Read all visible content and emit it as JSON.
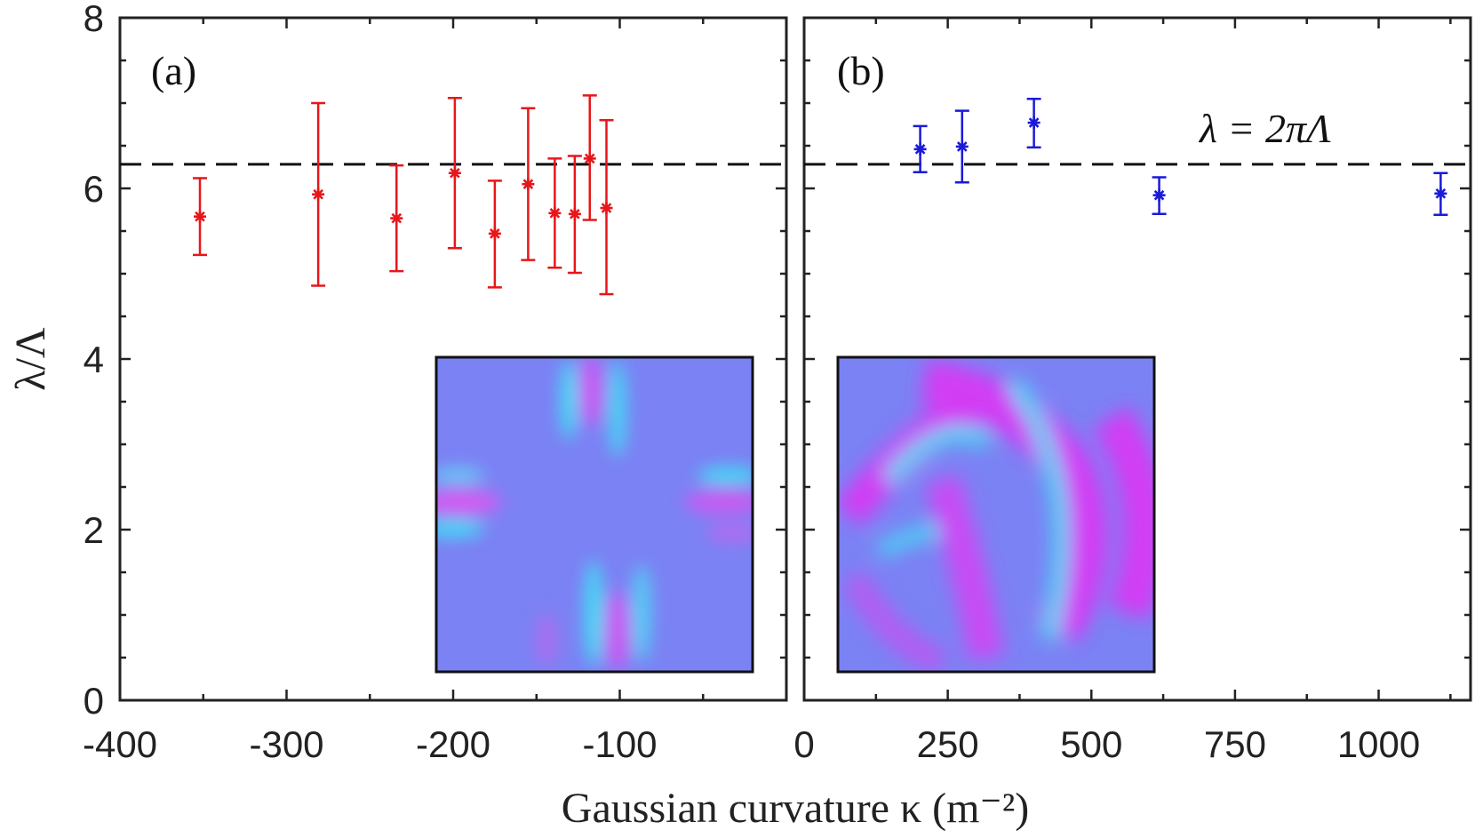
{
  "chart_data": [
    {
      "type": "scatter",
      "panel_label": "(a)",
      "color": "#e8161a",
      "x": [
        -352,
        -281,
        -234,
        -199,
        -175,
        -155,
        -139,
        -127,
        -118,
        -108
      ],
      "y": [
        5.67,
        5.93,
        5.65,
        6.18,
        5.47,
        6.05,
        5.71,
        5.7,
        6.35,
        5.77
      ],
      "err_low": [
        5.22,
        4.86,
        5.03,
        5.3,
        4.84,
        5.16,
        5.07,
        5.01,
        5.63,
        4.76
      ],
      "err_high": [
        6.12,
        7.0,
        6.27,
        7.06,
        6.09,
        6.94,
        6.35,
        6.38,
        7.09,
        6.8
      ],
      "xlim": [
        -400,
        0
      ],
      "ylim": [
        0,
        8
      ],
      "xticks": [
        "-400",
        "-300",
        "-200",
        "-100"
      ],
      "yticks": [
        "0",
        "2",
        "4",
        "6",
        "8"
      ],
      "reference_line": 6.2832
    },
    {
      "type": "scatter",
      "panel_label": "(b)",
      "color": "#1a1ad8",
      "x": [
        202,
        275,
        400,
        618,
        1108
      ],
      "y": [
        6.46,
        6.49,
        6.77,
        5.92,
        5.94
      ],
      "err_low": [
        6.19,
        6.07,
        6.48,
        5.7,
        5.69
      ],
      "err_high": [
        6.73,
        6.91,
        7.05,
        6.13,
        6.18
      ],
      "xlim": [
        0,
        1160
      ],
      "ylim": [
        0,
        8
      ],
      "xticks": [
        "0",
        "250",
        "500",
        "750",
        "1000"
      ],
      "reference_line": 6.2832,
      "annotation": "λ = 2πΛ"
    }
  ],
  "xlabel": "Gaussian curvature κ (m⁻²)",
  "ylabel": "λ/Λ"
}
